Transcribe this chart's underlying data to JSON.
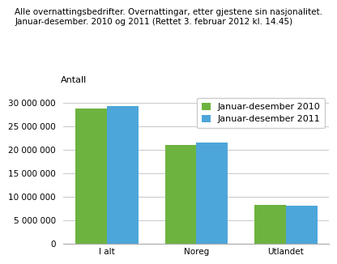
{
  "title_line1": "Alle overnattingsbedrifter. Overnattingar, etter gjestene sin nasjonalitet.",
  "title_line2": "Januar-desember. 2010 og 2011 (Rettet 3. februar 2012 kl. 14.45)",
  "ylabel": "Antall",
  "categories": [
    "I alt",
    "Noreg",
    "Utlandet"
  ],
  "values_2010": [
    28800000,
    21000000,
    8300000
  ],
  "values_2011": [
    29400000,
    21600000,
    8200000
  ],
  "color_2010": "#6db33f",
  "color_2011": "#4da6d9",
  "legend_2010": "Januar-desember 2010",
  "legend_2011": "Januar-desember 2011",
  "ylim": [
    0,
    32000000
  ],
  "yticks": [
    0,
    5000000,
    10000000,
    15000000,
    20000000,
    25000000,
    30000000
  ],
  "bar_width": 0.35,
  "background_color": "#ffffff",
  "grid_color": "#cccccc",
  "title_fontsize": 7.5,
  "ylabel_fontsize": 8,
  "tick_fontsize": 7.5,
  "legend_fontsize": 8
}
